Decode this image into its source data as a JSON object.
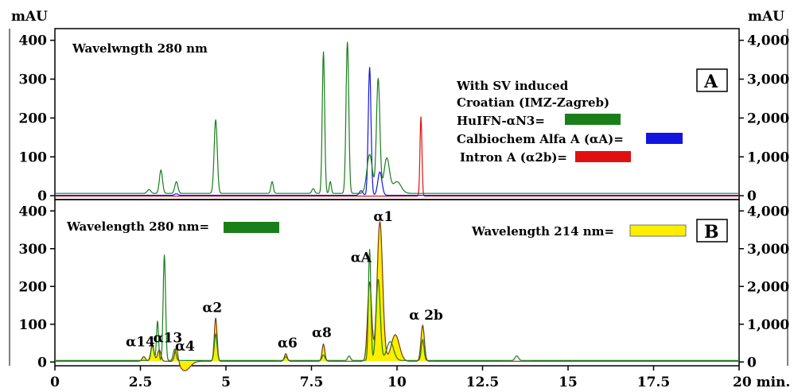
{
  "chart_data": [
    {
      "panel": "A",
      "type": "line",
      "title": "Wavelwngth 280 nm",
      "xlim": [
        0,
        20
      ],
      "ylim_left": [
        -10,
        430
      ],
      "ylim_right": [
        -100,
        4300
      ],
      "yticks_left": [
        0,
        100,
        200,
        300,
        400
      ],
      "yticks_right": [
        0,
        1000,
        2000,
        3000,
        4000
      ],
      "yticklabels_right": [
        "0",
        "1,000",
        "2,000",
        "3,000",
        "4,000"
      ],
      "ylabel_left": "mAU",
      "ylabel_right": "mAU",
      "legend_title": [
        "With SV induced",
        "Croatian (IMZ-Zagreb)"
      ],
      "series": [
        {
          "name": "HuIFN-αN3",
          "color": "#1a7f1a",
          "baseline": 6,
          "peaks": [
            [
              2.75,
              10,
              0.05
            ],
            [
              3.1,
              60,
              0.045
            ],
            [
              3.55,
              30,
              0.045
            ],
            [
              4.7,
              190,
              0.045
            ],
            [
              6.35,
              30,
              0.035
            ],
            [
              7.55,
              12,
              0.04
            ],
            [
              7.85,
              365,
              0.035
            ],
            [
              8.05,
              30,
              0.03
            ],
            [
              8.55,
              390,
              0.04
            ],
            [
              9.2,
              100,
              0.08
            ],
            [
              9.45,
              295,
              0.05
            ],
            [
              9.7,
              90,
              0.08
            ],
            [
              10.0,
              30,
              0.12
            ]
          ]
        },
        {
          "name": "Calbiochem Alfa A (αA)",
          "color": "#1515e0",
          "baseline": 1,
          "peaks": [
            [
              3.55,
              4,
              0.05
            ],
            [
              8.95,
              12,
              0.05
            ],
            [
              9.2,
              330,
              0.04
            ],
            [
              9.5,
              60,
              0.06
            ]
          ]
        },
        {
          "name": "Intron A (α2b)",
          "color": "#e01010",
          "baseline": -1,
          "peaks": [
            [
              10.7,
              205,
              0.028
            ]
          ]
        }
      ]
    },
    {
      "panel": "B",
      "type": "line",
      "xlim": [
        0,
        20
      ],
      "xticks": [
        0,
        2.5,
        5,
        7.5,
        10,
        12.5,
        15,
        17.5,
        20
      ],
      "xticklabels": [
        "0",
        "2.5",
        "5",
        "7.5",
        "10",
        "12.5",
        "15",
        "17.5",
        "20 min."
      ],
      "ylim_left": [
        -10,
        430
      ],
      "ylim_right": [
        -100,
        4300
      ],
      "yticks_left": [
        0,
        100,
        200,
        300,
        400
      ],
      "yticks_right": [
        0,
        1000,
        2000,
        3000,
        4000
      ],
      "yticklabels_right": [
        "0",
        "1,000",
        "2,000",
        "3,000",
        "4,000"
      ],
      "series": [
        {
          "name": "Wavelength 280 nm",
          "color": "#1a7f1a",
          "baseline": 4,
          "peaks": [
            [
              2.85,
              45,
              0.04
            ],
            [
              3.0,
              105,
              0.03
            ],
            [
              3.2,
              280,
              0.035
            ],
            [
              3.5,
              30,
              0.04
            ],
            [
              4.7,
              70,
              0.04
            ],
            [
              6.75,
              10,
              0.04
            ],
            [
              7.85,
              15,
              0.04
            ],
            [
              8.6,
              12,
              0.04
            ],
            [
              9.2,
              295,
              0.035
            ],
            [
              9.45,
              215,
              0.06
            ],
            [
              9.8,
              50,
              0.1
            ],
            [
              10.75,
              55,
              0.04
            ],
            [
              13.5,
              12,
              0.05
            ]
          ]
        },
        {
          "name": "Wavelength 214 nm",
          "color": "#7a3b1a",
          "fill": "#ffee00",
          "baseline": 2,
          "peaks": [
            [
              2.6,
              12,
              0.05
            ],
            [
              2.85,
              40,
              0.05
            ],
            [
              3.05,
              30,
              0.05
            ],
            [
              3.55,
              40,
              0.05
            ],
            [
              4.7,
              115,
              0.04
            ],
            [
              6.75,
              20,
              0.04
            ],
            [
              7.85,
              45,
              0.04
            ],
            [
              9.2,
              210,
              0.06
            ],
            [
              9.5,
              370,
              0.08
            ],
            [
              9.95,
              70,
              0.12
            ],
            [
              10.75,
              95,
              0.05
            ]
          ],
          "dips": [
            [
              3.8,
              -25,
              0.15
            ]
          ]
        }
      ],
      "annotations": [
        {
          "text": "α14",
          "x": 2.5,
          "y": 42
        },
        {
          "text": "α13",
          "x": 3.3,
          "y": 52
        },
        {
          "text": "α4",
          "x": 3.8,
          "y": 30
        },
        {
          "text": "α2",
          "x": 4.6,
          "y": 132
        },
        {
          "text": "α6",
          "x": 6.8,
          "y": 38
        },
        {
          "text": "α8",
          "x": 7.8,
          "y": 66
        },
        {
          "text": "αA",
          "x": 8.95,
          "y": 265
        },
        {
          "text": "α1",
          "x": 9.6,
          "y": 373
        },
        {
          "text": "α 2b",
          "x": 10.85,
          "y": 112
        }
      ]
    }
  ]
}
